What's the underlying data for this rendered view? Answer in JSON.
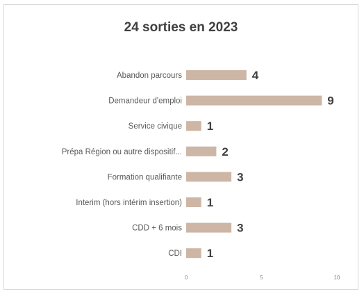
{
  "chart_data": {
    "type": "bar",
    "orientation": "horizontal",
    "title": "24 sorties en 2023",
    "xlabel": "",
    "ylabel": "",
    "categories": [
      "Abandon parcours",
      "Demandeur d'emploi",
      "Service civique",
      "Prépa Région ou autre dispositif...",
      "Formation qualifiante",
      "Interim (hors intérim insertion)",
      "CDD + 6 mois",
      "CDI"
    ],
    "values": [
      4,
      9,
      1,
      2,
      3,
      1,
      3,
      1
    ],
    "xlim": [
      0,
      10
    ],
    "xticks": [
      "0",
      "5",
      "10"
    ],
    "grid": false,
    "legend": "none",
    "bar_color": "#cdb6a5",
    "text_color": "#404040"
  }
}
